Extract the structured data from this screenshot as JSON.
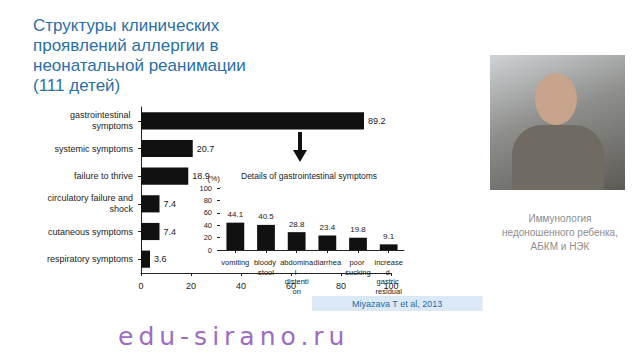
{
  "chart_data": [
    {
      "type": "bar",
      "title": "Структуры клинических проявлений аллергии в неонатальной реанимации (111 детей)",
      "orientation": "horizontal",
      "categories": [
        "gastrointestinal symptoms",
        "systemic symptoms",
        "failure to thrive",
        "circulatory failure and shock",
        "cutaneous symptoms",
        "respiratory symptoms"
      ],
      "values": [
        89.2,
        20.7,
        18.9,
        7.4,
        7.4,
        3.6
      ],
      "color": "#111111",
      "xlim": [
        0,
        100
      ],
      "xticks": [
        0,
        20,
        40,
        60,
        80,
        100
      ],
      "data_labels": true,
      "grid": false
    },
    {
      "type": "bar",
      "title": "Details of gastrointestinal symptoms",
      "ylabel": "(%)",
      "categories": [
        "vomiting",
        "bloody stool",
        "abdominal distention",
        "diarrhea",
        "poor sucking",
        "increased gastric residual"
      ],
      "values": [
        44.1,
        40.5,
        28.8,
        23.4,
        19.8,
        9.1
      ],
      "color": "#111111",
      "ylim": [
        0,
        100
      ],
      "yticks": [
        0,
        20,
        40,
        60,
        80,
        100
      ],
      "data_labels": true,
      "grid": false
    }
  ],
  "source": "Miyazava T et al, 2013",
  "caption": "Иммунология недоношенного ребенка, АБКМ и НЭК",
  "watermark": "edu-sirano.ru"
}
